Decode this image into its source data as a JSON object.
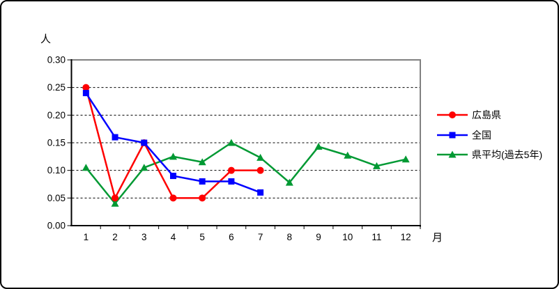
{
  "window": {
    "background_color": "#ffffff",
    "border_color": "#000000"
  },
  "chart_data": {
    "type": "line",
    "title": "",
    "y_unit_label": "人",
    "x_unit_label": "月",
    "xlabel": "月",
    "ylabel": "人",
    "categories": [
      "1",
      "2",
      "3",
      "4",
      "5",
      "6",
      "7",
      "8",
      "9",
      "10",
      "11",
      "12"
    ],
    "y_ticks": [
      "0.00",
      "0.05",
      "0.10",
      "0.15",
      "0.20",
      "0.25",
      "0.30"
    ],
    "y_tick_values": [
      0,
      0.05,
      0.1,
      0.15,
      0.2,
      0.25,
      0.3
    ],
    "ylim": [
      0,
      0.3
    ],
    "grid": "horizontal dashed black",
    "legend_position": "right",
    "axis_color": "#000000",
    "plot_border_color": "#808080",
    "series": [
      {
        "name": "広島県",
        "color": "#ff0000",
        "marker": "circle",
        "values": [
          0.25,
          0.05,
          0.15,
          0.05,
          0.05,
          0.1,
          0.1,
          null,
          null,
          null,
          null,
          null
        ]
      },
      {
        "name": "全国",
        "color": "#0000ff",
        "marker": "square",
        "values": [
          0.24,
          0.16,
          0.15,
          0.09,
          0.08,
          0.08,
          0.06,
          null,
          null,
          null,
          null,
          null
        ]
      },
      {
        "name": "県平均(過去5年)",
        "color": "#009933",
        "marker": "triangle",
        "values": [
          0.105,
          0.04,
          0.105,
          0.125,
          0.115,
          0.15,
          0.123,
          0.078,
          0.143,
          0.127,
          0.108,
          0.12
        ]
      }
    ]
  }
}
